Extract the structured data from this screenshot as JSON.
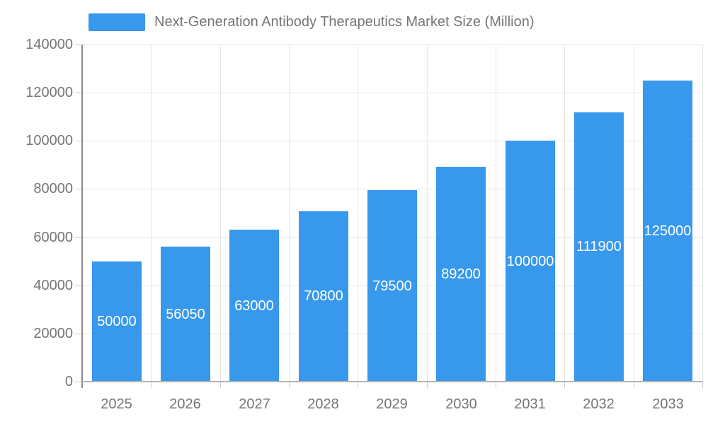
{
  "legend": {
    "series_label": "Next-Generation Antibody Therapeutics Market Size (Million)"
  },
  "colors": {
    "bar_fill": "#3898EC",
    "axis_label": "#757575",
    "legend_text": "#757575",
    "grid_line": "#E6E6E6",
    "x_axis_line": "#B3B3B3",
    "y_axis_line": "#8A8A8A",
    "tick_mark": "#CCCCCC",
    "value_label": "#FFFFFF",
    "background": "#FFFFFF"
  },
  "chart_data": {
    "type": "bar",
    "title": "Next-Generation Antibody Therapeutics Market Size (Million)",
    "categories": [
      "2025",
      "2026",
      "2027",
      "2028",
      "2029",
      "2030",
      "2031",
      "2032",
      "2033"
    ],
    "values": [
      50000,
      56050,
      63000,
      70800,
      79500,
      89200,
      100000,
      111900,
      125000
    ],
    "value_labels": [
      "50000",
      "56050",
      "63000",
      "70800",
      "79500",
      "89200",
      "100000",
      "111900",
      "125000"
    ],
    "xlabel": "",
    "ylabel": "",
    "ylim": [
      0,
      140000
    ],
    "ytick_step": 20000,
    "ytick_labels": [
      "0",
      "20000",
      "40000",
      "60000",
      "80000",
      "100000",
      "120000",
      "140000"
    ],
    "grid": true,
    "legend_position": "top",
    "value_label_position": "inside-middle"
  }
}
